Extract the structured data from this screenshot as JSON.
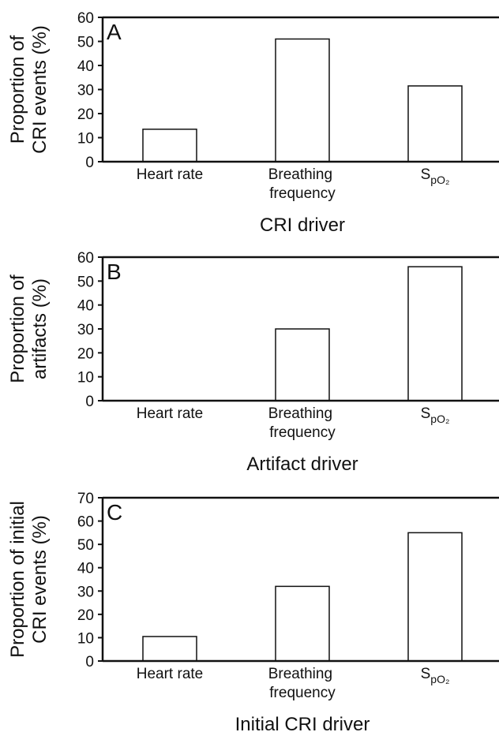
{
  "chart_data": [
    {
      "type": "bar",
      "label": "A",
      "ylabel": [
        "Proportion of",
        "CRI events (%)"
      ],
      "xlabel": "CRI driver",
      "categories": [
        "Heart rate",
        "Breathing frequency",
        "SpO₂"
      ],
      "values": [
        13.5,
        51,
        31.5
      ],
      "color": "#ffffff",
      "ylim": [
        0,
        60
      ],
      "yticks": [
        0,
        10,
        20,
        30,
        40,
        50,
        60
      ]
    },
    {
      "type": "bar",
      "label": "B",
      "ylabel": [
        "Proportion of",
        "artifacts (%)"
      ],
      "xlabel": "Artifact driver",
      "categories": [
        "Heart rate",
        "Breathing frequency",
        "SpO₂"
      ],
      "values": [
        0,
        30,
        56
      ],
      "color": "#ffffff",
      "ylim": [
        0,
        60
      ],
      "yticks": [
        0,
        10,
        20,
        30,
        40,
        50,
        60
      ]
    },
    {
      "type": "bar",
      "label": "C",
      "ylabel": [
        "Proportion of initial",
        "CRI events (%)"
      ],
      "xlabel": "Initial CRI driver",
      "categories": [
        "Heart rate",
        "Breathing frequency",
        "SpO₂"
      ],
      "values": [
        10.5,
        32,
        55
      ],
      "color": "#ffffff",
      "ylim": [
        0,
        70
      ],
      "yticks": [
        0,
        10,
        20,
        30,
        40,
        50,
        60,
        70
      ]
    }
  ]
}
